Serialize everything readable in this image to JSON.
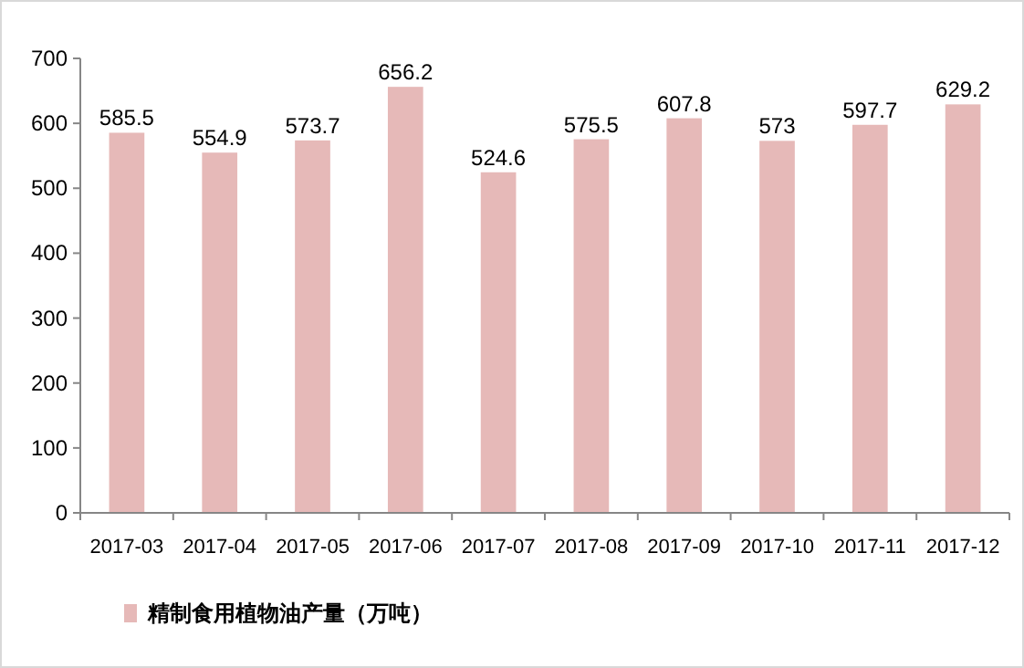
{
  "chart_data": {
    "type": "bar",
    "categories": [
      "2017-03",
      "2017-04",
      "2017-05",
      "2017-06",
      "2017-07",
      "2017-08",
      "2017-09",
      "2017-10",
      "2017-11",
      "2017-12"
    ],
    "series": [
      {
        "name": "精制食用植物油产量（万吨）",
        "color": "#e6b9b8",
        "values": [
          585.5,
          554.9,
          573.7,
          656.2,
          524.6,
          575.5,
          607.8,
          573,
          597.7,
          629.2
        ]
      }
    ],
    "ylim": [
      0,
      700
    ],
    "yticks": [
      0,
      100,
      200,
      300,
      400,
      500,
      600,
      700
    ],
    "data_labels": true,
    "legend": "bottom left"
  }
}
